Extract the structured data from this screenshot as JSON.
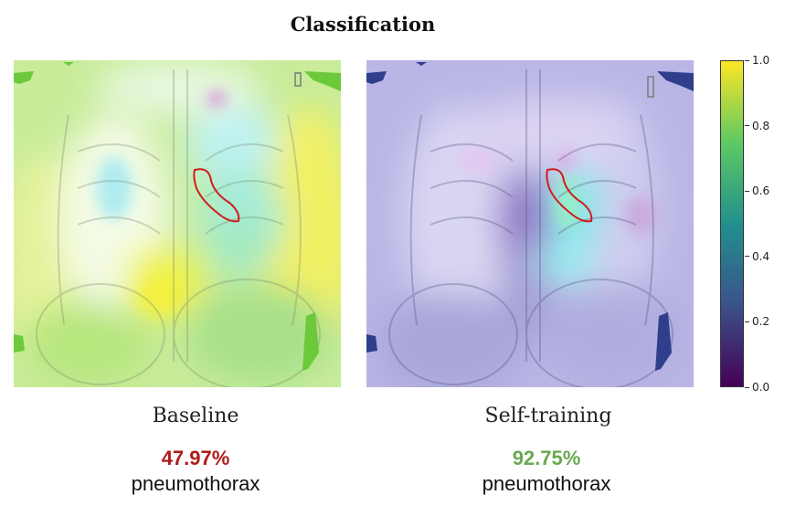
{
  "title": "Classification",
  "panels": [
    {
      "caption": "Baseline",
      "score": "47.97%",
      "score_color": "#b01a1a",
      "label": "pneumothorax"
    },
    {
      "caption": "Self-training",
      "score": "92.75%",
      "score_color": "#6aa84f",
      "label": "pneumothorax"
    }
  ],
  "colorbar": {
    "colormap": "viridis",
    "min": 0.0,
    "max": 1.0,
    "ticks": [
      "0.0",
      "0.2",
      "0.4",
      "0.6",
      "0.8",
      "1.0"
    ]
  },
  "colors": {
    "contour": "#d01c1c"
  }
}
